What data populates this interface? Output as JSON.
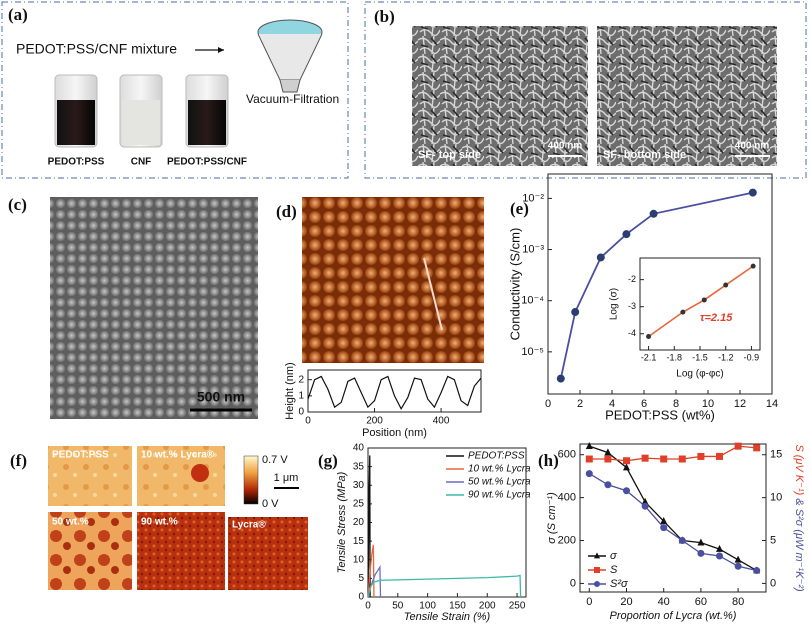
{
  "panels": {
    "a": {
      "label": "(a)",
      "mixture": "PEDOT:PSS/CNF mixture",
      "process": "Vacuum-Filtration",
      "vials": [
        "PEDOT:PSS",
        "CNF",
        "PEDOT:PSS/CNF"
      ]
    },
    "b": {
      "label": "(b)",
      "images": [
        {
          "caption": "SF- top side",
          "scale": "400 nm"
        },
        {
          "caption": "SF- bottom side",
          "scale": "400 nm"
        }
      ]
    },
    "c": {
      "label": "(c)",
      "scale": "500 nm"
    },
    "d": {
      "label": "(d)"
    },
    "e": {
      "label": "(e)"
    },
    "f": {
      "label": "(f)",
      "images": [
        "PEDOT:PSS",
        "10 wt.% Lycra®",
        "50 wt.%",
        "90 wt.%",
        "Lycra®"
      ],
      "colorbar": [
        "0.7 V",
        "0 V"
      ],
      "scale": "1 μm"
    },
    "g": {
      "label": "(g)"
    },
    "h": {
      "label": "(h)"
    }
  },
  "chart_data": [
    {
      "type": "line",
      "xlabel": "Position (nm)",
      "ylabel": "Height (nm)",
      "xlim": [
        0,
        520
      ],
      "xticks": [
        0,
        200,
        400
      ],
      "ylim": [
        0,
        2.6
      ],
      "yticks": [
        0,
        1,
        2
      ],
      "x": [
        0,
        20,
        40,
        60,
        80,
        100,
        120,
        140,
        160,
        180,
        200,
        220,
        240,
        260,
        280,
        300,
        320,
        340,
        360,
        380,
        400,
        420,
        440,
        460,
        480,
        500,
        520
      ],
      "series": [
        {
          "color": "#111111",
          "values": [
            0.8,
            2.0,
            2.2,
            1.4,
            0.3,
            0.6,
            1.9,
            2.1,
            1.2,
            0.3,
            0.7,
            2.0,
            2.2,
            1.0,
            0.2,
            0.9,
            2.1,
            2.0,
            0.8,
            0.3,
            1.2,
            2.2,
            2.0,
            0.7,
            0.4,
            1.6,
            2.1
          ]
        }
      ]
    },
    {
      "type": "line",
      "xlabel": "PEDOT:PSS (wt%)",
      "ylabel": "Conductivity (S/cm)",
      "log_y": true,
      "xlim": [
        0,
        14
      ],
      "xticks": [
        0,
        2,
        4,
        6,
        8,
        10,
        12,
        14
      ],
      "ylim": [
        1.5e-06,
        0.03
      ],
      "yticks": [
        {
          "value": 1e-05,
          "label": "10⁻⁵"
        },
        {
          "value": 0.0001,
          "label": "10⁻⁴"
        },
        {
          "value": 0.001,
          "label": "10⁻³"
        },
        {
          "value": 0.01,
          "label": "10⁻²"
        }
      ],
      "x": [
        0.8,
        1.7,
        3.3,
        4.9,
        6.6,
        12.8
      ],
      "series": [
        {
          "color": "#4a4fa0",
          "marker": "circle",
          "marker_color": "#2c3e70",
          "values": [
            3e-06,
            6e-05,
            0.0007,
            0.002,
            0.005,
            0.013
          ]
        }
      ]
    },
    {
      "type": "line",
      "xlabel": "Log (φ-φc)",
      "ylabel": "Log (σ)",
      "annotation": "τ=2.15",
      "annotation_color": "#e0402a",
      "xlim": [
        -2.2,
        -0.8
      ],
      "xticks": [
        -2.1,
        -1.8,
        -1.5,
        -1.2,
        -0.9
      ],
      "ylim": [
        -4.6,
        -1.2
      ],
      "yticks": [
        -4,
        -3,
        -2
      ],
      "x": [
        -2.1,
        -1.7,
        -1.45,
        -1.2,
        -0.88
      ],
      "series": [
        {
          "color": "#e8663a",
          "marker": "circle",
          "marker_color": "#333333",
          "values": [
            -4.1,
            -3.2,
            -2.75,
            -2.2,
            -1.5
          ]
        }
      ]
    },
    {
      "type": "line",
      "xlabel": "Tensile Strain (%)",
      "ylabel": "Tensile Stress (MPa)",
      "xlim": [
        0,
        265
      ],
      "xticks": [
        0,
        50,
        100,
        150,
        200,
        250
      ],
      "ylim": [
        0,
        40
      ],
      "yticks": [
        0,
        5,
        10,
        15,
        20,
        25,
        30,
        35,
        40
      ],
      "legend": "top-right",
      "series": [
        {
          "name": "PEDOT:PSS",
          "color": "#111111",
          "x": [
            0,
            1,
            2,
            3,
            3.5
          ],
          "values": [
            0,
            15,
            30,
            38,
            0
          ]
        },
        {
          "name": "10 wt.% Lycra",
          "color": "#e8663a",
          "x": [
            0,
            3,
            6,
            9,
            10
          ],
          "values": [
            0,
            6,
            11,
            14,
            0
          ]
        },
        {
          "name": "50 wt.% Lycra",
          "color": "#6a6fc0",
          "x": [
            0,
            5,
            12,
            20,
            21
          ],
          "values": [
            0,
            3,
            6,
            8,
            0
          ]
        },
        {
          "name": "90 wt.% Lycra",
          "color": "#3fb8a8",
          "x": [
            0,
            5,
            10,
            20,
            50,
            100,
            150,
            200,
            250,
            255,
            256
          ],
          "values": [
            0,
            3,
            4,
            4.5,
            4.6,
            4.8,
            5,
            5.2,
            5.6,
            5.8,
            0
          ]
        }
      ]
    },
    {
      "type": "line",
      "xlabel": "Proportion of Lycra (wt.%)",
      "ylabel": "σ (S cm⁻¹)",
      "y2label": [
        "S (μV K⁻¹)",
        "& S²σ (μW m⁻¹K⁻²)"
      ],
      "xlim": [
        -5,
        95
      ],
      "xticks": [
        0,
        20,
        40,
        60,
        80
      ],
      "ylim": [
        -40,
        650
      ],
      "yticks": [
        0,
        200,
        400,
        600
      ],
      "y2lim": [
        -1,
        16.25
      ],
      "y2ticks": [
        0,
        5,
        10,
        15
      ],
      "legend": "bottom-left",
      "x": [
        0,
        10,
        20,
        30,
        40,
        50,
        60,
        70,
        80,
        90
      ],
      "series": [
        {
          "name": "σ",
          "color": "#111111",
          "marker": "triangle",
          "values": [
            640,
            610,
            540,
            380,
            290,
            200,
            190,
            160,
            110,
            60
          ]
        },
        {
          "name": "S",
          "color": "#e0402a",
          "marker": "square",
          "axis": "y2",
          "values": [
            14.5,
            14.5,
            14.3,
            14.6,
            14.5,
            14.5,
            14.8,
            14.8,
            16,
            15.8
          ]
        },
        {
          "name": "S²σ",
          "color": "#4a4fa0",
          "marker": "circle",
          "axis": "y2",
          "values": [
            12.8,
            11.5,
            10.8,
            9,
            6.5,
            5,
            3.5,
            3.2,
            2,
            1.5
          ]
        }
      ]
    }
  ]
}
